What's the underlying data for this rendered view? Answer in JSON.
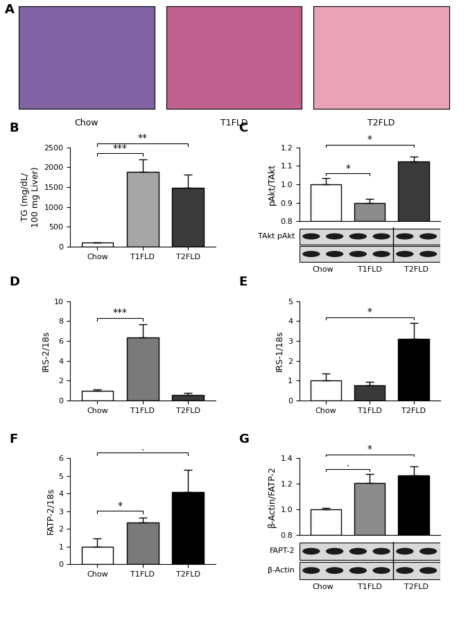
{
  "images": {
    "panel": "A",
    "captions": [
      "Chow",
      "T1FLD",
      "T2FLD"
    ],
    "colors": [
      "#7f63a3",
      "#c0608e",
      "#e9a3b6"
    ]
  },
  "chart_data": [
    {
      "panel": "B",
      "type": "bar",
      "ylabel": "TG (mg/dL/\n100 mg Liver)",
      "categories": [
        "Chow",
        "T1FLD",
        "T2FLD"
      ],
      "values": [
        100,
        1890,
        1490
      ],
      "errors": [
        15,
        310,
        320
      ],
      "colors": [
        "#ffffff",
        "#a6a6a6",
        "#3a3a3a"
      ],
      "ylim": [
        0,
        2500
      ],
      "yticks": [
        0,
        500,
        1000,
        1500,
        2000,
        2500
      ],
      "significance": [
        {
          "from": 0,
          "to": 1,
          "label": "***"
        },
        {
          "from": 0,
          "to": 2,
          "label": "**"
        }
      ]
    },
    {
      "panel": "C",
      "type": "bar",
      "ylabel": "pAkt/TAkt",
      "tick_labels": "y",
      "categories": [
        "Chow",
        "T1FLD",
        "T2FLD"
      ],
      "values": [
        1.0,
        0.9,
        1.125
      ],
      "errors": [
        0.035,
        0.02,
        0.025
      ],
      "colors": [
        "#ffffff",
        "#8c8c8c",
        "#3a3a3a"
      ],
      "ylim": [
        0.8,
        1.2
      ],
      "yticks": [
        0.8,
        0.9,
        1.0,
        1.1,
        1.2
      ],
      "significance": [
        {
          "from": 0,
          "to": 1,
          "label": "*"
        },
        {
          "from": 0,
          "to": 2,
          "label": "*"
        }
      ],
      "blot_labels": [
        "TAkt pAkt"
      ]
    },
    {
      "panel": "D",
      "type": "bar",
      "ylabel": "IRS-2/18s",
      "categories": [
        "Chow",
        "T1FLD",
        "T2FLD"
      ],
      "values": [
        1.0,
        6.35,
        0.6
      ],
      "errors": [
        0.15,
        1.35,
        0.2
      ],
      "colors": [
        "#ffffff",
        "#7a7a7a",
        "#3a3a3a"
      ],
      "ylim": [
        0,
        10
      ],
      "yticks": [
        0,
        2,
        4,
        6,
        8,
        10
      ],
      "significance": [
        {
          "from": 0,
          "to": 1,
          "label": "***"
        }
      ]
    },
    {
      "panel": "E",
      "type": "bar",
      "ylabel": "IRS-1/18s",
      "categories": [
        "Chow",
        "T1FLD",
        "T2FLD"
      ],
      "values": [
        1.0,
        0.78,
        3.12
      ],
      "errors": [
        0.35,
        0.18,
        0.78
      ],
      "colors": [
        "#ffffff",
        "#3a3a3a",
        "#000000"
      ],
      "ylim": [
        0,
        5
      ],
      "yticks": [
        0,
        1,
        2,
        3,
        4,
        5
      ],
      "significance": [
        {
          "from": 0,
          "to": 2,
          "label": "*"
        }
      ]
    },
    {
      "panel": "F",
      "type": "bar",
      "ylabel": "FATP-2/18s",
      "categories": [
        "Chow",
        "T1FLD",
        "T2FLD"
      ],
      "values": [
        1.0,
        2.35,
        4.1
      ],
      "errors": [
        0.45,
        0.3,
        1.25
      ],
      "colors": [
        "#ffffff",
        "#7a7a7a",
        "#000000"
      ],
      "ylim": [
        0,
        6
      ],
      "yticks": [
        0,
        1,
        2,
        3,
        4,
        5,
        6
      ],
      "significance": [
        {
          "from": 0,
          "to": 1,
          "label": "*"
        },
        {
          "from": 0,
          "to": 2,
          "label": "."
        }
      ]
    },
    {
      "panel": "G",
      "type": "bar",
      "ylabel": "β-Actin/FATP-2",
      "tick_labels": "y",
      "categories": [
        "Chow",
        "T1FLD",
        "T2FLD"
      ],
      "values": [
        1.0,
        1.21,
        1.265
      ],
      "errors": [
        0.015,
        0.07,
        0.07
      ],
      "colors": [
        "#ffffff",
        "#8c8c8c",
        "#000000"
      ],
      "ylim": [
        0.8,
        1.4
      ],
      "yticks": [
        0.8,
        1.0,
        1.2,
        1.4
      ],
      "significance": [
        {
          "from": 0,
          "to": 1,
          "label": "."
        },
        {
          "from": 0,
          "to": 2,
          "label": "*"
        }
      ],
      "blot_labels": [
        "FAPT-2",
        "β-Actin"
      ]
    }
  ]
}
